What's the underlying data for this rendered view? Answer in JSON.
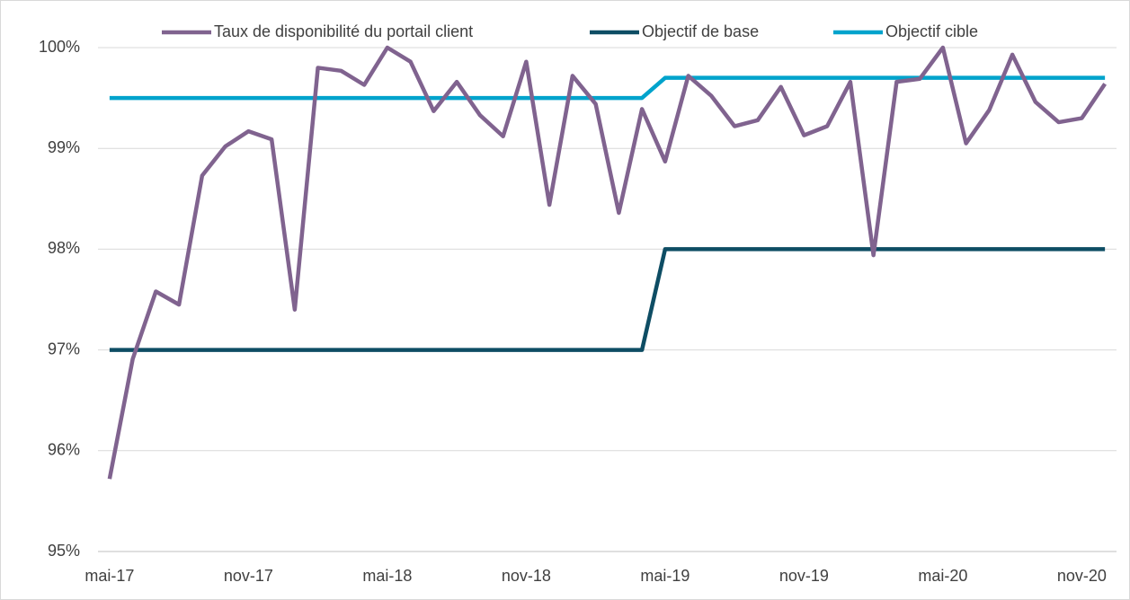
{
  "chart_data": {
    "type": "line",
    "categories": [
      "mai-17",
      null,
      null,
      null,
      null,
      null,
      "nov-17",
      null,
      null,
      null,
      null,
      null,
      "mai-18",
      null,
      null,
      null,
      null,
      null,
      "nov-18",
      null,
      null,
      null,
      null,
      null,
      "mai-19",
      null,
      null,
      null,
      null,
      null,
      "nov-19",
      null,
      null,
      null,
      null,
      null,
      "mai-20",
      null,
      null,
      null,
      null,
      null,
      "nov-20",
      null
    ],
    "series": [
      {
        "name": "Taux de disponibilité du portail client",
        "color": "#80638f",
        "values": [
          95.72,
          96.91,
          97.58,
          97.45,
          98.73,
          99.02,
          99.17,
          99.09,
          97.4,
          99.8,
          99.77,
          99.63,
          100.0,
          99.86,
          99.37,
          99.66,
          99.33,
          99.12,
          99.86,
          98.44,
          99.72,
          99.44,
          98.36,
          99.39,
          98.87,
          99.72,
          99.52,
          99.22,
          99.28,
          99.61,
          99.13,
          99.22,
          99.66,
          97.94,
          99.66,
          99.69,
          100.0,
          99.05,
          99.38,
          99.93,
          99.46,
          99.26,
          99.3,
          99.64
        ]
      },
      {
        "name": "Objectif de base",
        "color": "#0e4d64",
        "values": [
          97,
          97,
          97,
          97,
          97,
          97,
          97,
          97,
          97,
          97,
          97,
          97,
          97,
          97,
          97,
          97,
          97,
          97,
          97,
          97,
          97,
          97,
          97,
          97,
          98,
          98,
          98,
          98,
          98,
          98,
          98,
          98,
          98,
          98,
          98,
          98,
          98,
          98,
          98,
          98,
          98,
          98,
          98,
          98
        ]
      },
      {
        "name": "Objectif cible",
        "color": "#00a3cc",
        "values": [
          99.5,
          99.5,
          99.5,
          99.5,
          99.5,
          99.5,
          99.5,
          99.5,
          99.5,
          99.5,
          99.5,
          99.5,
          99.5,
          99.5,
          99.5,
          99.5,
          99.5,
          99.5,
          99.5,
          99.5,
          99.5,
          99.5,
          99.5,
          99.5,
          99.7,
          99.7,
          99.7,
          99.7,
          99.7,
          99.7,
          99.7,
          99.7,
          99.7,
          99.7,
          99.7,
          99.7,
          99.7,
          99.7,
          99.7,
          99.7,
          99.7,
          99.7,
          99.7,
          99.7
        ]
      }
    ],
    "ylim": [
      95,
      100
    ],
    "yticks": [
      {
        "value": 95,
        "label": "95%"
      },
      {
        "value": 96,
        "label": "96%"
      },
      {
        "value": 97,
        "label": "97%"
      },
      {
        "value": 98,
        "label": "98%"
      },
      {
        "value": 99,
        "label": "99%"
      },
      {
        "value": 100,
        "label": "100%"
      }
    ],
    "grid": true,
    "legend": "top"
  }
}
